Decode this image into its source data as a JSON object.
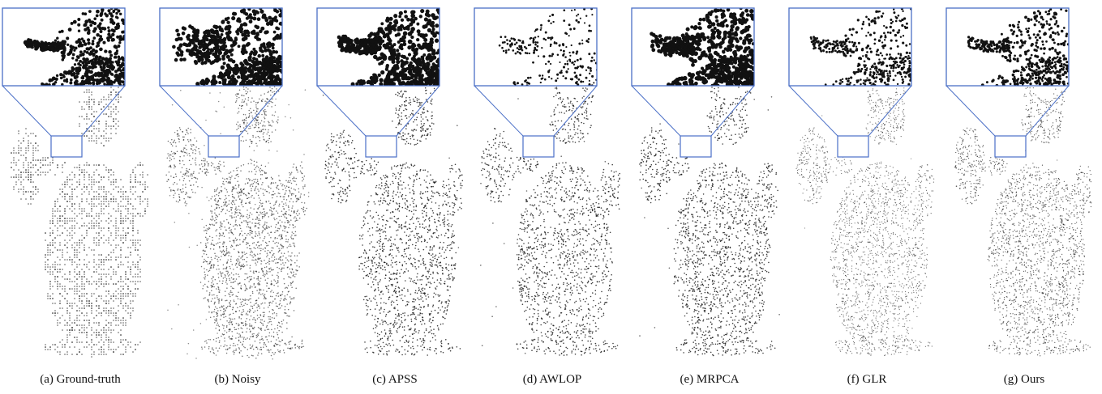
{
  "figure": {
    "panels": [
      {
        "id": "gt",
        "caption": "(a) Ground-truth",
        "style": "gt"
      },
      {
        "id": "noisy",
        "caption": "(b) Noisy",
        "style": "noisy"
      },
      {
        "id": "apss",
        "caption": "(c) APSS",
        "style": "apss"
      },
      {
        "id": "awlop",
        "caption": "(d) AWLOP",
        "style": "awlop"
      },
      {
        "id": "mrpca",
        "caption": "(e) MRPCA",
        "style": "mrpca"
      },
      {
        "id": "glr",
        "caption": "(f) GLR",
        "style": "glr"
      },
      {
        "id": "ours",
        "caption": "(g) Ours",
        "style": "ours"
      }
    ],
    "colors": {
      "zoom_box": "#4a6fc7",
      "points": "#111111",
      "caption": "#111111"
    }
  }
}
